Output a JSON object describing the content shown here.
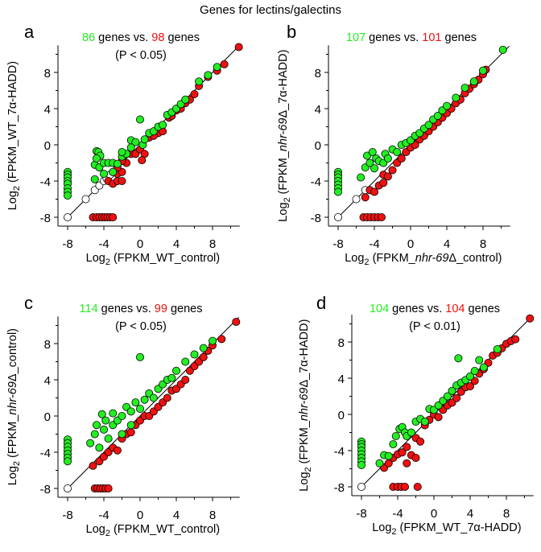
{
  "title": "Genes for lectins/galectins",
  "colors": {
    "up": "#22ee22",
    "down": "#ee1111",
    "neutral": "#ffffff",
    "stroke": "#000000"
  },
  "chart_data": [
    {
      "type": "scatter",
      "panel": "a",
      "xlabel_prefix": "Log",
      "xlabel_sub": "2",
      "xlabel_text": " (FPKM_WT_control)",
      "xlabel_italic": "",
      "xlabel_rest": "",
      "ylabel_prefix": "Log",
      "ylabel_sub": "2",
      "ylabel_text": " (FPKM_WT_7α-HADD)",
      "ylabel_italic": "",
      "ylabel_rest": "",
      "green_count": "86",
      "red_count": "98",
      "vs_text": " genes vs. ",
      "genes_text": " genes",
      "pvalue": "(P < 0.05)",
      "xlim": [
        -9,
        11
      ],
      "ylim": [
        -9,
        11
      ],
      "xticks": [
        -8,
        -4,
        0,
        4,
        8
      ],
      "yticks": [
        -8,
        -4,
        0,
        4,
        8
      ],
      "green": [
        [
          -8,
          -3
        ],
        [
          -8,
          -3.3
        ],
        [
          -8,
          -3.6
        ],
        [
          -8,
          -4
        ],
        [
          -8,
          -4.3
        ],
        [
          -8,
          -4.8
        ],
        [
          -8,
          -5.2
        ],
        [
          -8,
          -5.6
        ],
        [
          -5,
          -2.2
        ],
        [
          -5,
          -3.8
        ],
        [
          -4.8,
          -0.7
        ],
        [
          -4.6,
          -0.8
        ],
        [
          -4.4,
          -1.2
        ],
        [
          -4.8,
          -1.5
        ],
        [
          -4.5,
          -2.5
        ],
        [
          -4,
          -2
        ],
        [
          -3.5,
          -2
        ],
        [
          -3,
          -2
        ],
        [
          -2.5,
          -2.1
        ],
        [
          -2,
          -1.3
        ],
        [
          -1.5,
          -1
        ],
        [
          -1,
          0.5
        ],
        [
          -0.5,
          0.3
        ],
        [
          0,
          2.8
        ],
        [
          0.3,
          0
        ],
        [
          1,
          1.3
        ],
        [
          1.5,
          1.5
        ],
        [
          2,
          2
        ],
        [
          2.5,
          2.2
        ],
        [
          3,
          3.3
        ],
        [
          3.5,
          3.6
        ],
        [
          4,
          4
        ],
        [
          4.5,
          4.5
        ],
        [
          5,
          5
        ],
        [
          6.5,
          7
        ],
        [
          7.5,
          7.7
        ],
        [
          8.5,
          8.6
        ],
        [
          -1,
          -0.3
        ],
        [
          -2,
          -0.8
        ],
        [
          0.5,
          0.6
        ],
        [
          -3,
          -3
        ],
        [
          -4,
          -3.2
        ]
      ],
      "red": [
        [
          -5.2,
          -8
        ],
        [
          -4.8,
          -8
        ],
        [
          -4.5,
          -8
        ],
        [
          -4.2,
          -8
        ],
        [
          -3.9,
          -8
        ],
        [
          -3.6,
          -8
        ],
        [
          -3.3,
          -8
        ],
        [
          -3,
          -8
        ],
        [
          -3.5,
          -4
        ],
        [
          -3,
          -4.3
        ],
        [
          -2.5,
          -4
        ],
        [
          -2,
          -4
        ],
        [
          -3,
          -3
        ],
        [
          -2.5,
          -3.2
        ],
        [
          -2,
          -3
        ],
        [
          -2.5,
          -2.5
        ],
        [
          -1.5,
          -2
        ],
        [
          -2,
          -1.8
        ],
        [
          -1,
          -1
        ],
        [
          -0.5,
          -1
        ],
        [
          0,
          -0.5
        ],
        [
          0.5,
          -1
        ],
        [
          0.2,
          -1.7
        ],
        [
          1,
          0.8
        ],
        [
          2,
          1.3
        ],
        [
          2.5,
          1.5
        ],
        [
          3.2,
          3
        ],
        [
          4,
          3.8
        ],
        [
          4.5,
          4
        ],
        [
          5,
          4.6
        ],
        [
          5.5,
          5
        ],
        [
          6,
          5.6
        ],
        [
          6.5,
          6.5
        ],
        [
          7.5,
          7.5
        ],
        [
          8.5,
          8.2
        ],
        [
          9.3,
          8.9
        ],
        [
          10.9,
          10.8
        ],
        [
          1.5,
          1
        ],
        [
          3.5,
          3.2
        ]
      ],
      "open": [
        [
          -8,
          -8
        ],
        [
          -6,
          -6
        ],
        [
          -5,
          -5
        ],
        [
          -4.5,
          -4.5
        ],
        [
          -4,
          -4
        ],
        [
          -3.7,
          -3.7
        ],
        [
          -3.3,
          -3.3
        ]
      ]
    },
    {
      "type": "scatter",
      "panel": "b",
      "xlabel_prefix": "Log",
      "xlabel_sub": "2",
      "xlabel_text": " (FPKM_",
      "xlabel_italic": "nhr-69",
      "xlabel_rest": "Δ_control)",
      "ylabel_prefix": "Log",
      "ylabel_sub": "2",
      "ylabel_text": " (FPKM_",
      "ylabel_italic": "nhr-69",
      "ylabel_rest": "Δ_7α-HADD)",
      "green_count": "107",
      "red_count": "101",
      "vs_text": " genes vs. ",
      "genes_text": " genes",
      "pvalue": "",
      "xlim": [
        -9,
        11
      ],
      "ylim": [
        -9,
        11
      ],
      "xticks": [
        -8,
        -4,
        0,
        4,
        8
      ],
      "yticks": [
        -8,
        -4,
        0,
        4,
        8
      ],
      "green": [
        [
          -8,
          -3
        ],
        [
          -8,
          -3.3
        ],
        [
          -8,
          -3.6
        ],
        [
          -8,
          -4
        ],
        [
          -8,
          -4.4
        ],
        [
          -8,
          -4.8
        ],
        [
          -8,
          -5.2
        ],
        [
          -5.5,
          -3.6
        ],
        [
          -5,
          -2.5
        ],
        [
          -4.8,
          -1.2
        ],
        [
          -4.5,
          -2
        ],
        [
          -4.2,
          -0.8
        ],
        [
          -4,
          -2.6
        ],
        [
          -3.8,
          -1.5
        ],
        [
          -3.5,
          -1.8
        ],
        [
          -3,
          -2
        ],
        [
          -2.8,
          -1
        ],
        [
          -2.5,
          -1.5
        ],
        [
          -2,
          -0.5
        ],
        [
          -1.5,
          -0.8
        ],
        [
          -1,
          0
        ],
        [
          -0.5,
          0.2
        ],
        [
          0,
          0.5
        ],
        [
          0.5,
          1
        ],
        [
          1,
          1.3
        ],
        [
          1.5,
          1.8
        ],
        [
          2,
          2.2
        ],
        [
          2.5,
          2.8
        ],
        [
          3,
          3.2
        ],
        [
          3.5,
          3.8
        ],
        [
          4,
          4.3
        ],
        [
          5,
          5.2
        ],
        [
          6,
          6.3
        ],
        [
          7,
          7
        ],
        [
          8,
          8.2
        ],
        [
          10.2,
          10.5
        ]
      ],
      "red": [
        [
          -5.2,
          -8
        ],
        [
          -4.8,
          -8
        ],
        [
          -4.4,
          -8
        ],
        [
          -4,
          -8
        ],
        [
          -3.6,
          -8
        ],
        [
          -3.2,
          -8
        ],
        [
          -5,
          -5.8
        ],
        [
          -4.5,
          -5
        ],
        [
          -4,
          -5.2
        ],
        [
          -3.5,
          -4.5
        ],
        [
          -3,
          -4.2
        ],
        [
          -3,
          -3.3
        ],
        [
          -2.5,
          -3.5
        ],
        [
          -2,
          -2.8
        ],
        [
          -1.5,
          -2
        ],
        [
          -1,
          -1.5
        ],
        [
          -0.5,
          -0.8
        ],
        [
          0,
          -0.3
        ],
        [
          0.5,
          0
        ],
        [
          1,
          0.6
        ],
        [
          1.5,
          1
        ],
        [
          2,
          1.5
        ],
        [
          2.5,
          2
        ],
        [
          3,
          2.5
        ],
        [
          3.5,
          3
        ],
        [
          4,
          3.5
        ],
        [
          4.5,
          4
        ],
        [
          5,
          4.6
        ],
        [
          5.5,
          5
        ],
        [
          6,
          5.7
        ],
        [
          6.5,
          6.2
        ],
        [
          7,
          6.7
        ],
        [
          7.5,
          7.2
        ],
        [
          8,
          7.8
        ],
        [
          8.3,
          8.3
        ]
      ],
      "open": [
        [
          -8,
          -8
        ],
        [
          -6,
          -6
        ],
        [
          -5,
          -5
        ]
      ]
    },
    {
      "type": "scatter",
      "panel": "c",
      "xlabel_prefix": "Log",
      "xlabel_sub": "2",
      "xlabel_text": " (FPKM_WT_control)",
      "xlabel_italic": "",
      "xlabel_rest": "",
      "ylabel_prefix": "Log",
      "ylabel_sub": "2",
      "ylabel_text": " (FPKM_",
      "ylabel_italic": "nhr-69",
      "ylabel_rest": "Δ_control)",
      "green_count": "114",
      "red_count": "99",
      "vs_text": " genes vs. ",
      "genes_text": " genes",
      "pvalue": "(P < 0.05)",
      "xlim": [
        -9,
        11
      ],
      "ylim": [
        -9,
        11
      ],
      "xticks": [
        -8,
        -4,
        0,
        4,
        8
      ],
      "yticks": [
        -8,
        -4,
        0,
        4,
        8
      ],
      "green": [
        [
          -8,
          -2.6
        ],
        [
          -8,
          -3
        ],
        [
          -8,
          -3.4
        ],
        [
          -8,
          -3.8
        ],
        [
          -8,
          -4.2
        ],
        [
          -8,
          -4.6
        ],
        [
          -8,
          -5
        ],
        [
          -5.5,
          -3
        ],
        [
          -5,
          -2
        ],
        [
          -4.8,
          -1
        ],
        [
          -4.5,
          -3.5
        ],
        [
          -4.2,
          0.2
        ],
        [
          -4,
          -1.5
        ],
        [
          -3.8,
          -0.5
        ],
        [
          -3.5,
          -2.5
        ],
        [
          -3,
          -1
        ],
        [
          -3,
          0.3
        ],
        [
          -2.5,
          -0.5
        ],
        [
          -2,
          0
        ],
        [
          -1.5,
          1
        ],
        [
          -1,
          0.5
        ],
        [
          -0.5,
          1.5
        ],
        [
          0,
          6.5
        ],
        [
          0.5,
          1.8
        ],
        [
          1,
          2.5
        ],
        [
          1.5,
          2
        ],
        [
          2,
          3
        ],
        [
          2.5,
          3.5
        ],
        [
          3,
          4
        ],
        [
          3.5,
          4.2
        ],
        [
          4,
          5
        ],
        [
          5,
          6
        ],
        [
          6,
          6.8
        ],
        [
          7,
          7.5
        ],
        [
          8,
          8.3
        ],
        [
          -2,
          -2
        ],
        [
          -1,
          -1
        ],
        [
          0,
          0.8
        ]
      ],
      "red": [
        [
          -5,
          -8
        ],
        [
          -4.7,
          -8
        ],
        [
          -4.4,
          -8
        ],
        [
          -4.1,
          -8
        ],
        [
          -3.8,
          -8
        ],
        [
          -3.5,
          -8
        ],
        [
          -5.2,
          -5.5
        ],
        [
          -4.5,
          -5
        ],
        [
          -4,
          -4.5
        ],
        [
          -3.5,
          -4
        ],
        [
          -3,
          -3.5
        ],
        [
          -2.5,
          -3.8
        ],
        [
          -2,
          -2.5
        ],
        [
          -1.5,
          -2
        ],
        [
          -1,
          -1.8
        ],
        [
          -0.5,
          -1
        ],
        [
          0,
          -0.5
        ],
        [
          0.5,
          0
        ],
        [
          1,
          0
        ],
        [
          1.5,
          0.5
        ],
        [
          2,
          1
        ],
        [
          2.5,
          1.5
        ],
        [
          3,
          2
        ],
        [
          3.5,
          2.8
        ],
        [
          4,
          3
        ],
        [
          4.5,
          3.5
        ],
        [
          5,
          4
        ],
        [
          5.5,
          5
        ],
        [
          6,
          5.5
        ],
        [
          6.5,
          6
        ],
        [
          7,
          6.5
        ],
        [
          7.5,
          7.2
        ],
        [
          8,
          7.8
        ],
        [
          9,
          8.5
        ],
        [
          10.6,
          10.4
        ]
      ],
      "open": [
        [
          -8,
          -8
        ]
      ]
    },
    {
      "type": "scatter",
      "panel": "d",
      "xlabel_prefix": "Log",
      "xlabel_sub": "2",
      "xlabel_text": " (FPKM_WT_7α-HADD)",
      "xlabel_italic": "",
      "xlabel_rest": "",
      "ylabel_prefix": "Log",
      "ylabel_sub": "2",
      "ylabel_text": " (FPKM_",
      "ylabel_italic": "nhr-69",
      "ylabel_rest": "Δ_7α-HADD)",
      "green_count": "104",
      "red_count": "104",
      "vs_text": " genes vs. ",
      "genes_text": " genes",
      "pvalue": "(P < 0.01)",
      "xlim": [
        -9,
        11
      ],
      "ylim": [
        -9,
        11
      ],
      "xticks": [
        -8,
        -4,
        0,
        4,
        8
      ],
      "yticks": [
        -8,
        -4,
        0,
        4,
        8
      ],
      "green": [
        [
          -8,
          -3
        ],
        [
          -8,
          -3.3
        ],
        [
          -8,
          -3.6
        ],
        [
          -8,
          -4
        ],
        [
          -8,
          -4.4
        ],
        [
          -8,
          -4.8
        ],
        [
          -8,
          -5.2
        ],
        [
          -8,
          -5.6
        ],
        [
          -6,
          -5.4
        ],
        [
          -5.5,
          -4.5
        ],
        [
          -5,
          -4.6
        ],
        [
          -4.5,
          -3.3
        ],
        [
          -4.2,
          -2.4
        ],
        [
          -3.8,
          -1.6
        ],
        [
          -3.5,
          -1.4
        ],
        [
          -3.2,
          -2
        ],
        [
          -3,
          -2.4
        ],
        [
          -2.5,
          -2
        ],
        [
          -2,
          -0.8
        ],
        [
          -1.5,
          -0.5
        ],
        [
          -1,
          -0.8
        ],
        [
          -0.5,
          0.6
        ],
        [
          0,
          0.5
        ],
        [
          0.5,
          1
        ],
        [
          1,
          1.5
        ],
        [
          1.5,
          2
        ],
        [
          2,
          2.6
        ],
        [
          2.5,
          3.2
        ],
        [
          2.7,
          6.2
        ],
        [
          3,
          3.5
        ],
        [
          3.5,
          3.8
        ],
        [
          4,
          4.2
        ],
        [
          4.5,
          4.8
        ],
        [
          5,
          6
        ],
        [
          5.5,
          5.2
        ],
        [
          7,
          7.2
        ]
      ],
      "red": [
        [
          -4.5,
          -8
        ],
        [
          -4,
          -8
        ],
        [
          -3.6,
          -8
        ],
        [
          -3.2,
          -8
        ],
        [
          -1.8,
          -8
        ],
        [
          -5.5,
          -5.9
        ],
        [
          -5,
          -5.4
        ],
        [
          -4.5,
          -4.8
        ],
        [
          -4,
          -4.4
        ],
        [
          -3.5,
          -4.2
        ],
        [
          -3,
          -5.4
        ],
        [
          -3,
          -3.6
        ],
        [
          -2.5,
          -4.5
        ],
        [
          -2,
          -4.8
        ],
        [
          -2,
          -2.6
        ],
        [
          -1.5,
          -3
        ],
        [
          -1,
          -1.2
        ],
        [
          -0.5,
          -0.6
        ],
        [
          0,
          0
        ],
        [
          0.5,
          -0.3
        ],
        [
          1,
          0.5
        ],
        [
          1.5,
          1
        ],
        [
          2,
          1.3
        ],
        [
          2.5,
          1.8
        ],
        [
          3,
          2.5
        ],
        [
          3.5,
          3
        ],
        [
          4,
          3.1
        ],
        [
          4.5,
          3.7
        ],
        [
          5,
          4.5
        ],
        [
          5.5,
          5
        ],
        [
          6,
          5.7
        ],
        [
          6.5,
          6.5
        ],
        [
          7,
          6.8
        ],
        [
          7.5,
          7.3
        ],
        [
          8,
          7.8
        ],
        [
          8.5,
          8.1
        ],
        [
          9,
          8.3
        ],
        [
          10.6,
          10.6
        ]
      ],
      "open": [
        [
          -8,
          -8
        ]
      ]
    }
  ]
}
